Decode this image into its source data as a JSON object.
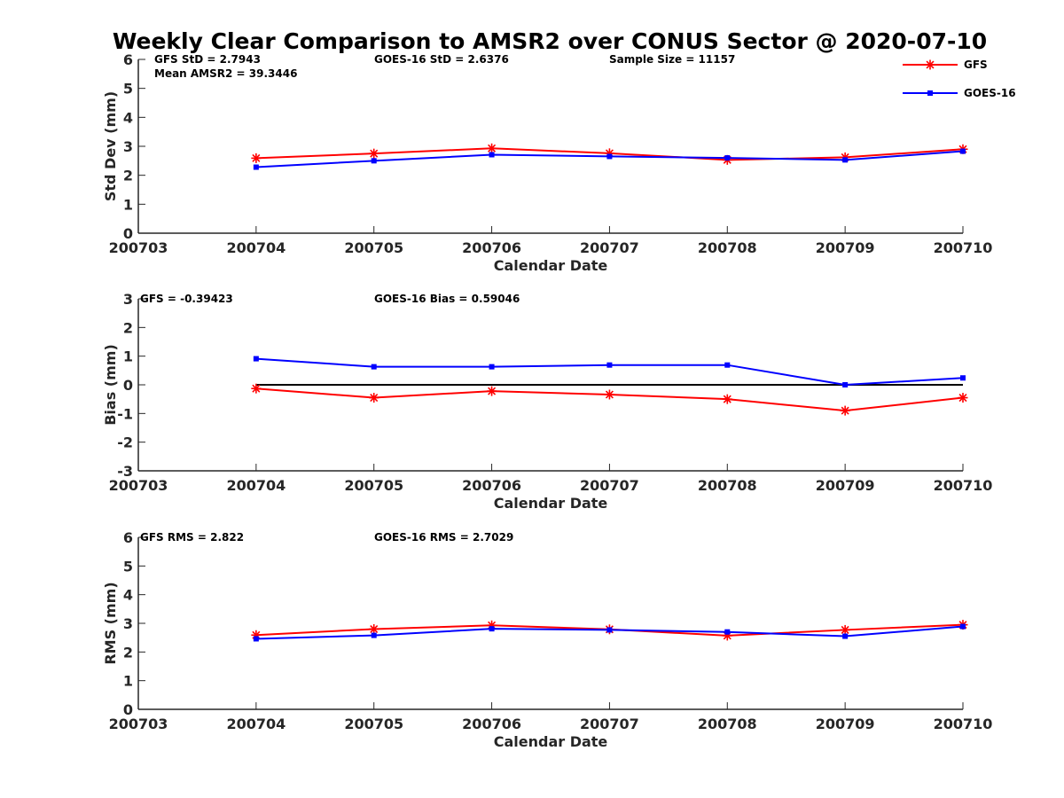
{
  "title": "Weekly Clear Comparison to AMSR2 over CONUS Sector @ 2020-07-10",
  "legend": {
    "placement": "top-right",
    "items": [
      {
        "name": "GFS",
        "color": "#ff0000",
        "marker": "asterisk"
      },
      {
        "name": "GOES-16",
        "color": "#0000ff",
        "marker": "square"
      }
    ]
  },
  "chart_data": [
    {
      "type": "line",
      "title": "",
      "xlabel": "Calendar Date",
      "ylabel": "Std Dev (mm)",
      "categories": [
        "200703",
        "200704",
        "200705",
        "200706",
        "200707",
        "200708",
        "200709",
        "200710"
      ],
      "ylim": [
        0,
        6
      ],
      "yticks": [
        0,
        1,
        2,
        3,
        4,
        5,
        6
      ],
      "grid": false,
      "series": [
        {
          "name": "GFS",
          "color": "#ff0000",
          "marker": "asterisk",
          "values": [
            null,
            2.59,
            2.75,
            2.93,
            2.76,
            2.53,
            2.62,
            2.9
          ]
        },
        {
          "name": "GOES-16",
          "color": "#0000ff",
          "marker": "square",
          "values": [
            null,
            2.28,
            2.5,
            2.71,
            2.65,
            2.6,
            2.53,
            2.83
          ]
        }
      ],
      "annotations": [
        "GFS StD = 2.7943",
        "Mean AMSR2 = 39.3446",
        "GOES-16 StD = 2.6376",
        "Sample Size = 11157"
      ]
    },
    {
      "type": "line",
      "title": "",
      "xlabel": "Calendar Date",
      "ylabel": "Bias (mm)",
      "categories": [
        "200703",
        "200704",
        "200705",
        "200706",
        "200707",
        "200708",
        "200709",
        "200710"
      ],
      "ylim": [
        -3,
        3
      ],
      "yticks": [
        -3,
        -2,
        -1,
        0,
        1,
        2,
        3
      ],
      "grid": false,
      "zero_line": true,
      "series": [
        {
          "name": "GFS",
          "color": "#ff0000",
          "marker": "asterisk",
          "values": [
            null,
            -0.13,
            -0.45,
            -0.22,
            -0.34,
            -0.5,
            -0.9,
            -0.45
          ]
        },
        {
          "name": "GOES-16",
          "color": "#0000ff",
          "marker": "square",
          "values": [
            null,
            0.91,
            0.63,
            0.63,
            0.69,
            0.69,
            0.0,
            0.24
          ]
        }
      ],
      "annotations": [
        "GFS = -0.39423",
        "GOES-16 Bias  = 0.59046"
      ]
    },
    {
      "type": "line",
      "title": "",
      "xlabel": "Calendar Date",
      "ylabel": "RMS (mm)",
      "categories": [
        "200703",
        "200704",
        "200705",
        "200706",
        "200707",
        "200708",
        "200709",
        "200710"
      ],
      "ylim": [
        0,
        6
      ],
      "yticks": [
        0,
        1,
        2,
        3,
        4,
        5,
        6
      ],
      "grid": false,
      "series": [
        {
          "name": "GFS",
          "color": "#ff0000",
          "marker": "asterisk",
          "values": [
            null,
            2.59,
            2.8,
            2.93,
            2.79,
            2.57,
            2.77,
            2.95
          ]
        },
        {
          "name": "GOES-16",
          "color": "#0000ff",
          "marker": "square",
          "values": [
            null,
            2.46,
            2.58,
            2.81,
            2.77,
            2.7,
            2.55,
            2.89
          ]
        }
      ],
      "annotations": [
        "GFS RMS = 2.822",
        "GOES-16 RMS = 2.7029"
      ]
    }
  ]
}
